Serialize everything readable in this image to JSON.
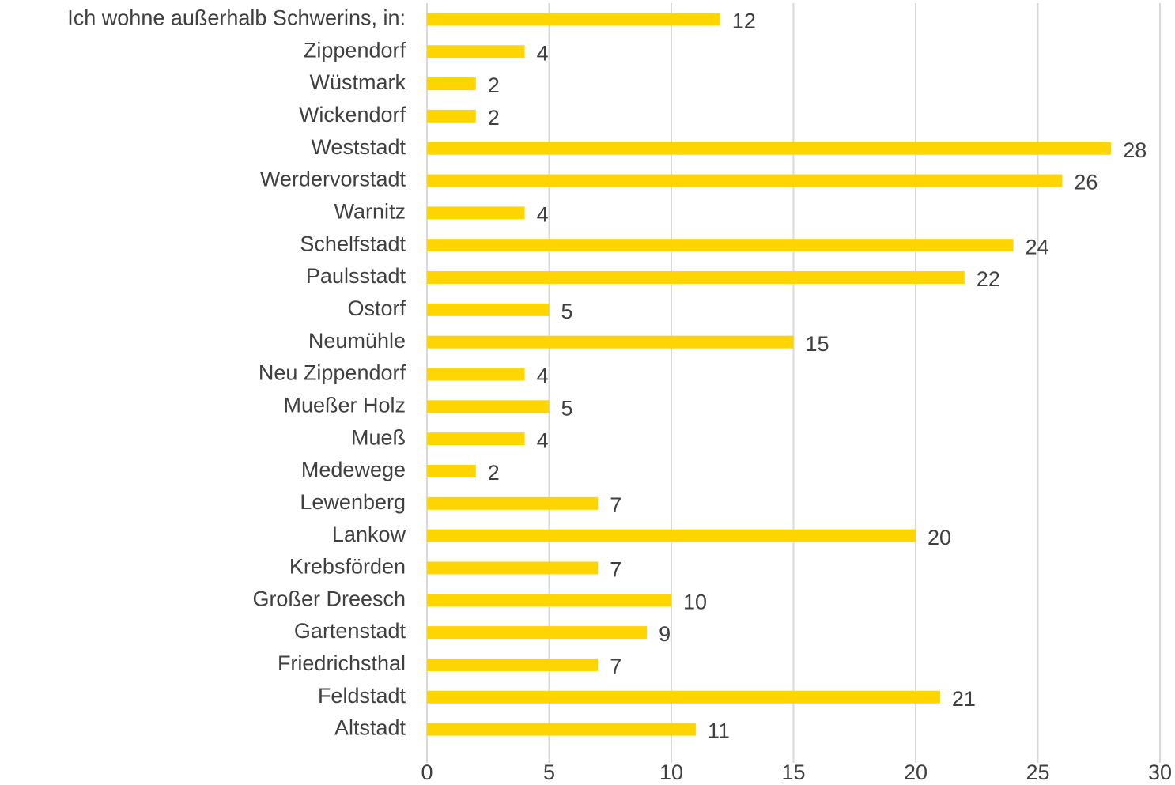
{
  "chart_data": {
    "type": "bar",
    "orientation": "horizontal",
    "categories": [
      "Ich wohne außerhalb Schwerins, in:",
      "Zippendorf",
      "Wüstmark",
      "Wickendorf",
      "Weststadt",
      "Werdervorstadt",
      "Warnitz",
      "Schelfstadt",
      "Paulsstadt",
      "Ostorf",
      "Neumühle",
      "Neu Zippendorf",
      "Mueßer Holz",
      "Mueß",
      "Medewege",
      "Lewenberg",
      "Lankow",
      "Krebsförden",
      "Großer Dreesch",
      "Gartenstadt",
      "Friedrichsthal",
      "Feldstadt",
      "Altstadt"
    ],
    "values": [
      12,
      4,
      2,
      2,
      28,
      26,
      4,
      24,
      22,
      5,
      15,
      4,
      5,
      4,
      2,
      7,
      20,
      7,
      10,
      9,
      7,
      21,
      11
    ],
    "color": "#ffd500",
    "xlim": [
      0,
      30
    ],
    "xticks": [
      0,
      5,
      10,
      15,
      20,
      25,
      30
    ],
    "grid": true
  }
}
